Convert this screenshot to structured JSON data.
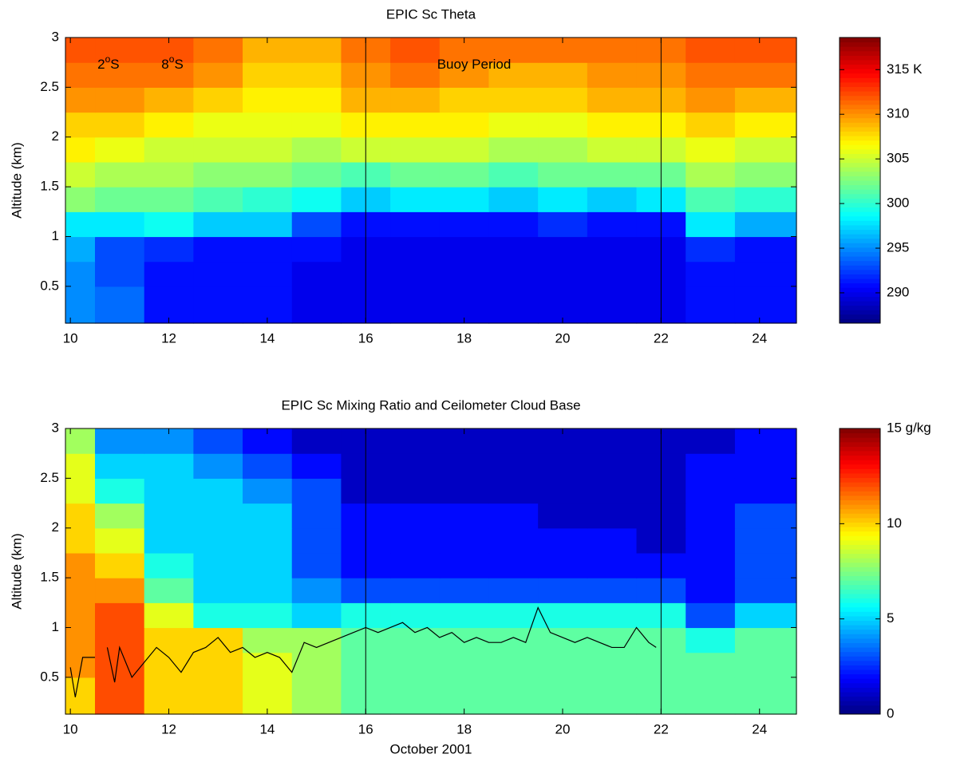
{
  "chart_data": [
    {
      "type": "heatmap",
      "title": "EPIC Sc Theta",
      "y_label": "Altitude (km)",
      "xlim": [
        9.9,
        24.75
      ],
      "ylim": [
        0.13,
        3
      ],
      "xticks": [
        10,
        12,
        14,
        16,
        18,
        20,
        22,
        24
      ],
      "yticks": [
        0.5,
        1,
        1.5,
        2,
        2.5,
        3
      ],
      "x_bins": [
        9.9,
        10.5,
        11.5,
        12.5,
        13.5,
        14.5,
        15.5,
        16.5,
        17.5,
        18.5,
        19.5,
        20.5,
        21.5,
        22.5,
        23.5,
        24.75
      ],
      "y_bins": [
        0.13,
        0.5,
        0.75,
        1,
        1.25,
        1.5,
        1.75,
        2,
        2.25,
        2.5,
        2.75,
        3
      ],
      "values": [
        [
          295,
          294,
          291,
          291,
          291,
          290,
          290,
          290,
          290,
          290,
          290,
          290,
          290,
          291,
          291
        ],
        [
          295,
          293,
          291,
          291,
          291,
          290,
          290,
          290,
          290,
          290,
          290,
          290,
          290,
          291,
          291
        ],
        [
          296,
          293,
          292,
          291,
          291,
          291,
          290,
          290,
          290,
          290,
          290,
          290,
          290,
          292,
          291
        ],
        [
          298,
          298,
          299,
          297,
          297,
          293,
          291,
          291,
          291,
          291,
          292,
          291,
          291,
          298,
          296
        ],
        [
          303,
          302,
          302,
          301,
          300,
          299,
          297,
          298,
          298,
          297,
          298,
          297,
          298,
          301,
          300
        ],
        [
          305,
          304,
          304,
          303,
          303,
          302,
          301,
          302,
          302,
          301,
          302,
          302,
          302,
          304,
          303
        ],
        [
          307,
          306,
          305,
          305,
          305,
          304,
          305,
          305,
          305,
          304,
          304,
          305,
          305,
          306,
          305
        ],
        [
          308,
          308,
          307,
          306,
          306,
          306,
          307,
          307,
          307,
          306,
          306,
          307,
          307,
          308,
          307
        ],
        [
          310,
          310,
          309,
          308,
          307,
          307,
          309,
          309,
          308,
          308,
          308,
          309,
          309,
          310,
          309
        ],
        [
          311,
          311,
          311,
          310,
          308,
          308,
          310,
          311,
          310,
          309,
          309,
          310,
          310,
          311,
          311
        ],
        [
          312,
          312,
          312,
          311,
          309,
          309,
          311,
          312,
          311,
          311,
          311,
          311,
          311,
          312,
          312
        ]
      ],
      "clim": [
        286.6,
        318.6
      ],
      "colorbar_ticks": [
        290,
        295,
        300,
        305,
        310,
        {
          "value": 315,
          "label": "315 K"
        }
      ],
      "vlines": [
        16,
        22
      ],
      "annotations": [
        {
          "text": "2",
          "sup": "o",
          "after": "S",
          "x": 10.55,
          "y": 2.72
        },
        {
          "text": "8",
          "sup": "o",
          "after": "S",
          "x": 11.85,
          "y": 2.72
        },
        {
          "text": "Buoy Period",
          "x": 17.45,
          "y": 2.72
        }
      ]
    },
    {
      "type": "heatmap",
      "title": "EPIC Sc Mixing Ratio and Ceilometer Cloud Base",
      "y_label": "Altitude (km)",
      "x_label": "October 2001",
      "xlim": [
        9.9,
        24.75
      ],
      "ylim": [
        0.13,
        3
      ],
      "xticks": [
        10,
        12,
        14,
        16,
        18,
        20,
        22,
        24
      ],
      "yticks": [
        0.5,
        1,
        1.5,
        2,
        2.5,
        3
      ],
      "x_bins": [
        9.9,
        10.5,
        11.5,
        12.5,
        13.5,
        14.5,
        15.5,
        16.5,
        17.5,
        18.5,
        19.5,
        20.5,
        21.5,
        22.5,
        23.5,
        24.75
      ],
      "y_bins": [
        0.13,
        0.5,
        0.75,
        1,
        1.25,
        1.5,
        1.75,
        2,
        2.25,
        2.5,
        2.75,
        3
      ],
      "values": [
        [
          10,
          12,
          10,
          10,
          9,
          8,
          7,
          7,
          7,
          7,
          7,
          7,
          7,
          7,
          7
        ],
        [
          11,
          12,
          10,
          10,
          9,
          8,
          7,
          7,
          7,
          7,
          7,
          7,
          7,
          7,
          7
        ],
        [
          11,
          12,
          10,
          10,
          8,
          8,
          7,
          7,
          7,
          7,
          7,
          7,
          7,
          6,
          7
        ],
        [
          11,
          12,
          9,
          6,
          6,
          5,
          6,
          6,
          6,
          6,
          6,
          6,
          6,
          3,
          5
        ],
        [
          11,
          11,
          7,
          5,
          5,
          4,
          3,
          3,
          3,
          3,
          3,
          3,
          3,
          2,
          3
        ],
        [
          11,
          10,
          6,
          5,
          5,
          3,
          2,
          2,
          2,
          2,
          2,
          2,
          2,
          2,
          3
        ],
        [
          10,
          9,
          5,
          5,
          5,
          3,
          2,
          2,
          2,
          2,
          2,
          2,
          1,
          2,
          3
        ],
        [
          10,
          8,
          5,
          5,
          5,
          3,
          2,
          2,
          2,
          2,
          1,
          1,
          1,
          2,
          3
        ],
        [
          9,
          6,
          5,
          5,
          4,
          3,
          1,
          1,
          1,
          1,
          1,
          1,
          1,
          2,
          2
        ],
        [
          9,
          5,
          5,
          4,
          3,
          2,
          1,
          1,
          1,
          1,
          1,
          1,
          1,
          2,
          2
        ],
        [
          8,
          4,
          4,
          3,
          2,
          1,
          1,
          1,
          1,
          1,
          1,
          1,
          1,
          1,
          2
        ]
      ],
      "clim": [
        0,
        15
      ],
      "colorbar_ticks": [
        0,
        5,
        10,
        {
          "value": 15,
          "label": "15 g/kg"
        }
      ],
      "vlines": [
        16,
        22
      ],
      "line": {
        "color": "#000000",
        "x": [
          10.0,
          10.1,
          10.25,
          10.5,
          10.6,
          10.75,
          10.9,
          11.0,
          11.25,
          11.5,
          11.75,
          12.0,
          12.25,
          12.5,
          12.75,
          13.0,
          13.25,
          13.5,
          13.75,
          14.0,
          14.25,
          14.5,
          14.75,
          15.0,
          15.25,
          15.5,
          15.75,
          16.0,
          16.25,
          16.5,
          16.75,
          17.0,
          17.25,
          17.5,
          17.75,
          18.0,
          18.25,
          18.5,
          18.75,
          19.0,
          19.25,
          19.5,
          19.75,
          20.0,
          20.25,
          20.5,
          20.75,
          21.0,
          21.25,
          21.5,
          21.75,
          21.9
        ],
        "values": [
          0.6,
          0.3,
          0.7,
          0.7,
          null,
          0.8,
          0.45,
          0.8,
          0.5,
          0.65,
          0.8,
          0.7,
          0.55,
          0.75,
          0.8,
          0.9,
          0.75,
          0.8,
          0.7,
          0.75,
          0.7,
          0.55,
          0.85,
          0.8,
          0.85,
          0.9,
          0.95,
          1.0,
          0.95,
          1.0,
          1.05,
          0.95,
          1.0,
          0.9,
          0.95,
          0.85,
          0.9,
          0.85,
          0.85,
          0.9,
          0.85,
          1.2,
          0.95,
          0.9,
          0.85,
          0.9,
          0.85,
          0.8,
          0.8,
          1.0,
          0.85,
          0.8
        ]
      }
    }
  ]
}
